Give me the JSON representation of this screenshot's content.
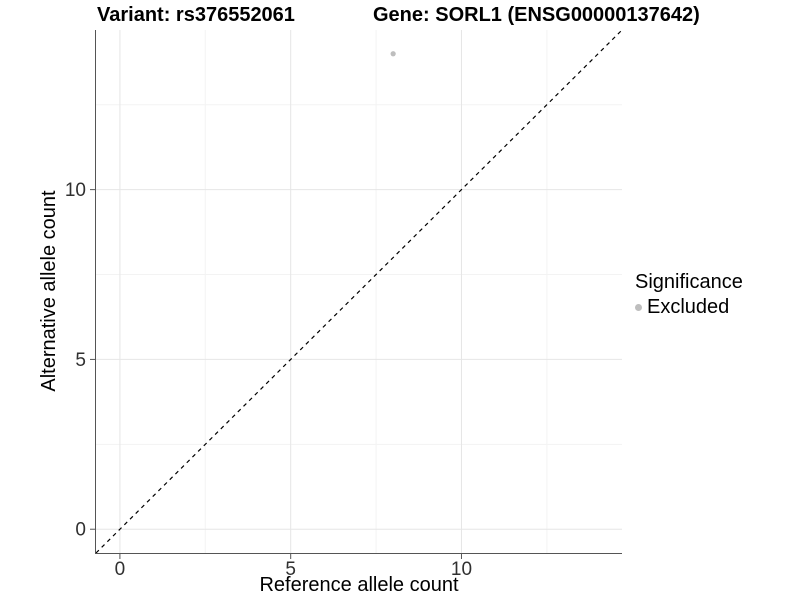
{
  "chart_data": {
    "type": "scatter",
    "title_left": "Variant: rs376552061",
    "title_right": "Gene: SORL1 (ENSG00000137642)",
    "xlabel": "Reference allele count",
    "ylabel": "Alternative allele count",
    "xlim": [
      0,
      14
    ],
    "ylim": [
      0,
      14
    ],
    "expansion_frac": 0.05,
    "x_major_ticks": [
      0,
      5,
      10
    ],
    "x_minor_ticks": [
      2.5,
      7.5,
      12.5
    ],
    "y_major_ticks": [
      0,
      5,
      10
    ],
    "y_minor_ticks": [
      2.5,
      7.5,
      12.5
    ],
    "grid": true,
    "identity_line": {
      "slope": 1,
      "intercept": 0,
      "style": "dashed",
      "color": "#000000"
    },
    "series": [
      {
        "name": "Excluded",
        "color": "#bebebe",
        "points": [
          {
            "x": 8,
            "y": 14
          }
        ]
      }
    ],
    "legend": {
      "title": "Significance",
      "position": "right",
      "entries": [
        {
          "label": "Excluded",
          "color": "#bebebe"
        }
      ]
    }
  },
  "colors": {
    "background": "#ffffff",
    "grid_major": "#e6e6e6",
    "grid_minor": "#f3f3f3",
    "axis_line": "#555555",
    "tick_label": "#303030",
    "point": "#bebebe",
    "identity_line": "#000000"
  }
}
